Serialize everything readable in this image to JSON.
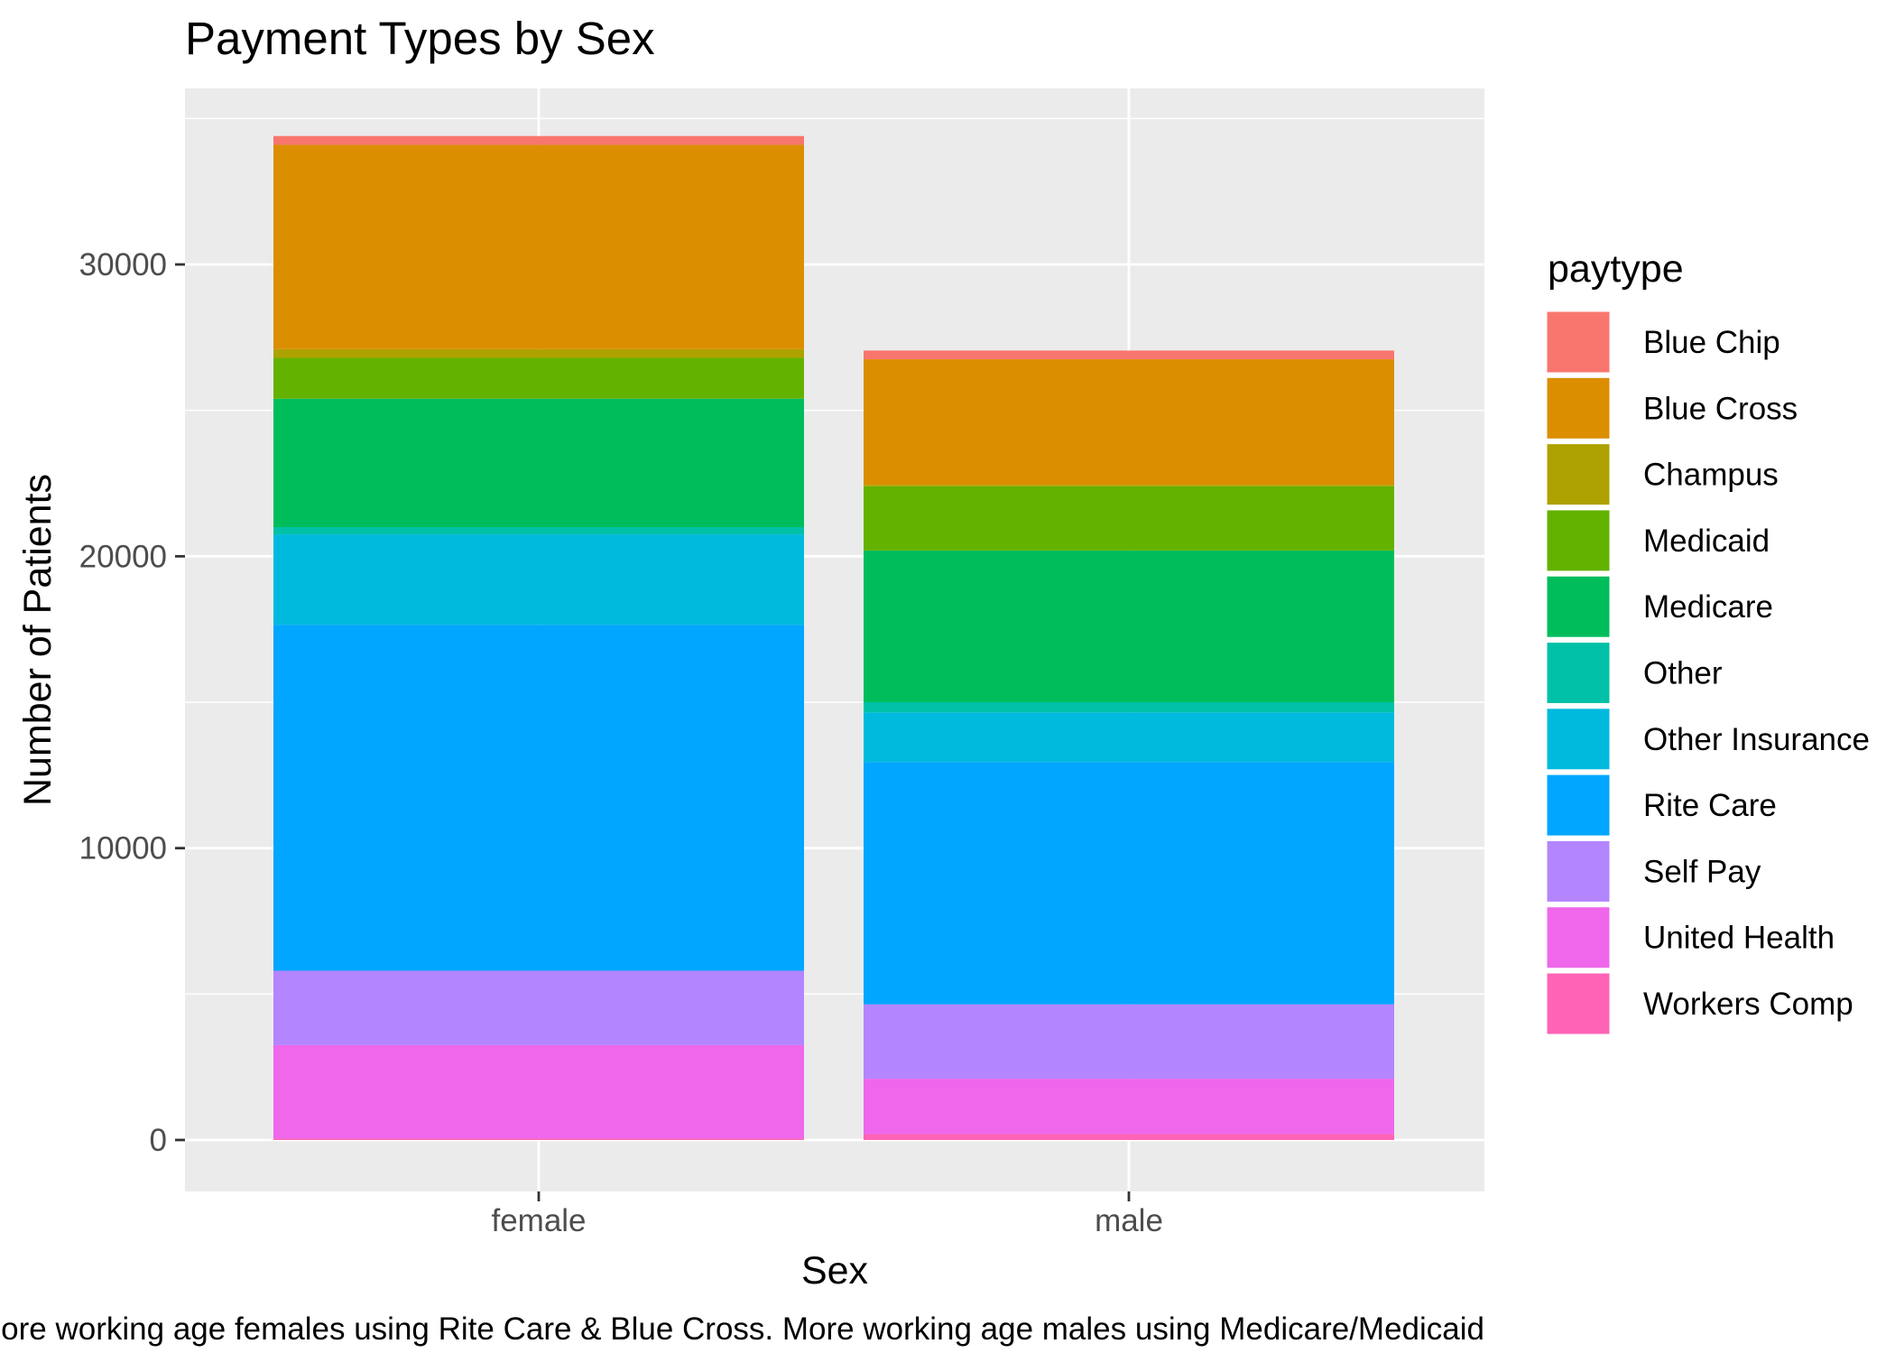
{
  "chart_data": {
    "type": "bar",
    "stacked": true,
    "title": "Payment Types by Sex",
    "xlabel": "Sex",
    "ylabel": "Number of Patients",
    "caption": "More working age females using Rite Care & Blue Cross. More working age males using Medicare/Medicaid",
    "categories": [
      "female",
      "male"
    ],
    "ylim": [
      0,
      35000
    ],
    "yticks": [
      0,
      10000,
      20000,
      30000
    ],
    "ytick_labels": [
      "0",
      "10000",
      "20000",
      "30000"
    ],
    "grid": true,
    "legend": {
      "title": "paytype",
      "position": "right"
    },
    "series": [
      {
        "name": "Blue Chip",
        "color": "#F8766D",
        "values": [
          300,
          300
        ]
      },
      {
        "name": "Blue Cross",
        "color": "#DB8E00",
        "values": [
          7000,
          4300
        ]
      },
      {
        "name": "Champus",
        "color": "#AEA200",
        "values": [
          300,
          50
        ]
      },
      {
        "name": "Medicaid",
        "color": "#64B200",
        "values": [
          1400,
          2200
        ]
      },
      {
        "name": "Medicare",
        "color": "#00BD5C",
        "values": [
          4400,
          5200
        ]
      },
      {
        "name": "Other",
        "color": "#00C1A7",
        "values": [
          250,
          350
        ]
      },
      {
        "name": "Other Insurance",
        "color": "#00BADE",
        "values": [
          3100,
          1700
        ]
      },
      {
        "name": "Rite Care",
        "color": "#00A6FF",
        "values": [
          11850,
          8300
        ]
      },
      {
        "name": "Self Pay",
        "color": "#B385FF",
        "values": [
          2550,
          2550
        ]
      },
      {
        "name": "United Health",
        "color": "#EF67EB",
        "values": [
          3200,
          1900
        ]
      },
      {
        "name": "Workers Comp",
        "color": "#FF63B6",
        "values": [
          50,
          200
        ]
      }
    ]
  }
}
